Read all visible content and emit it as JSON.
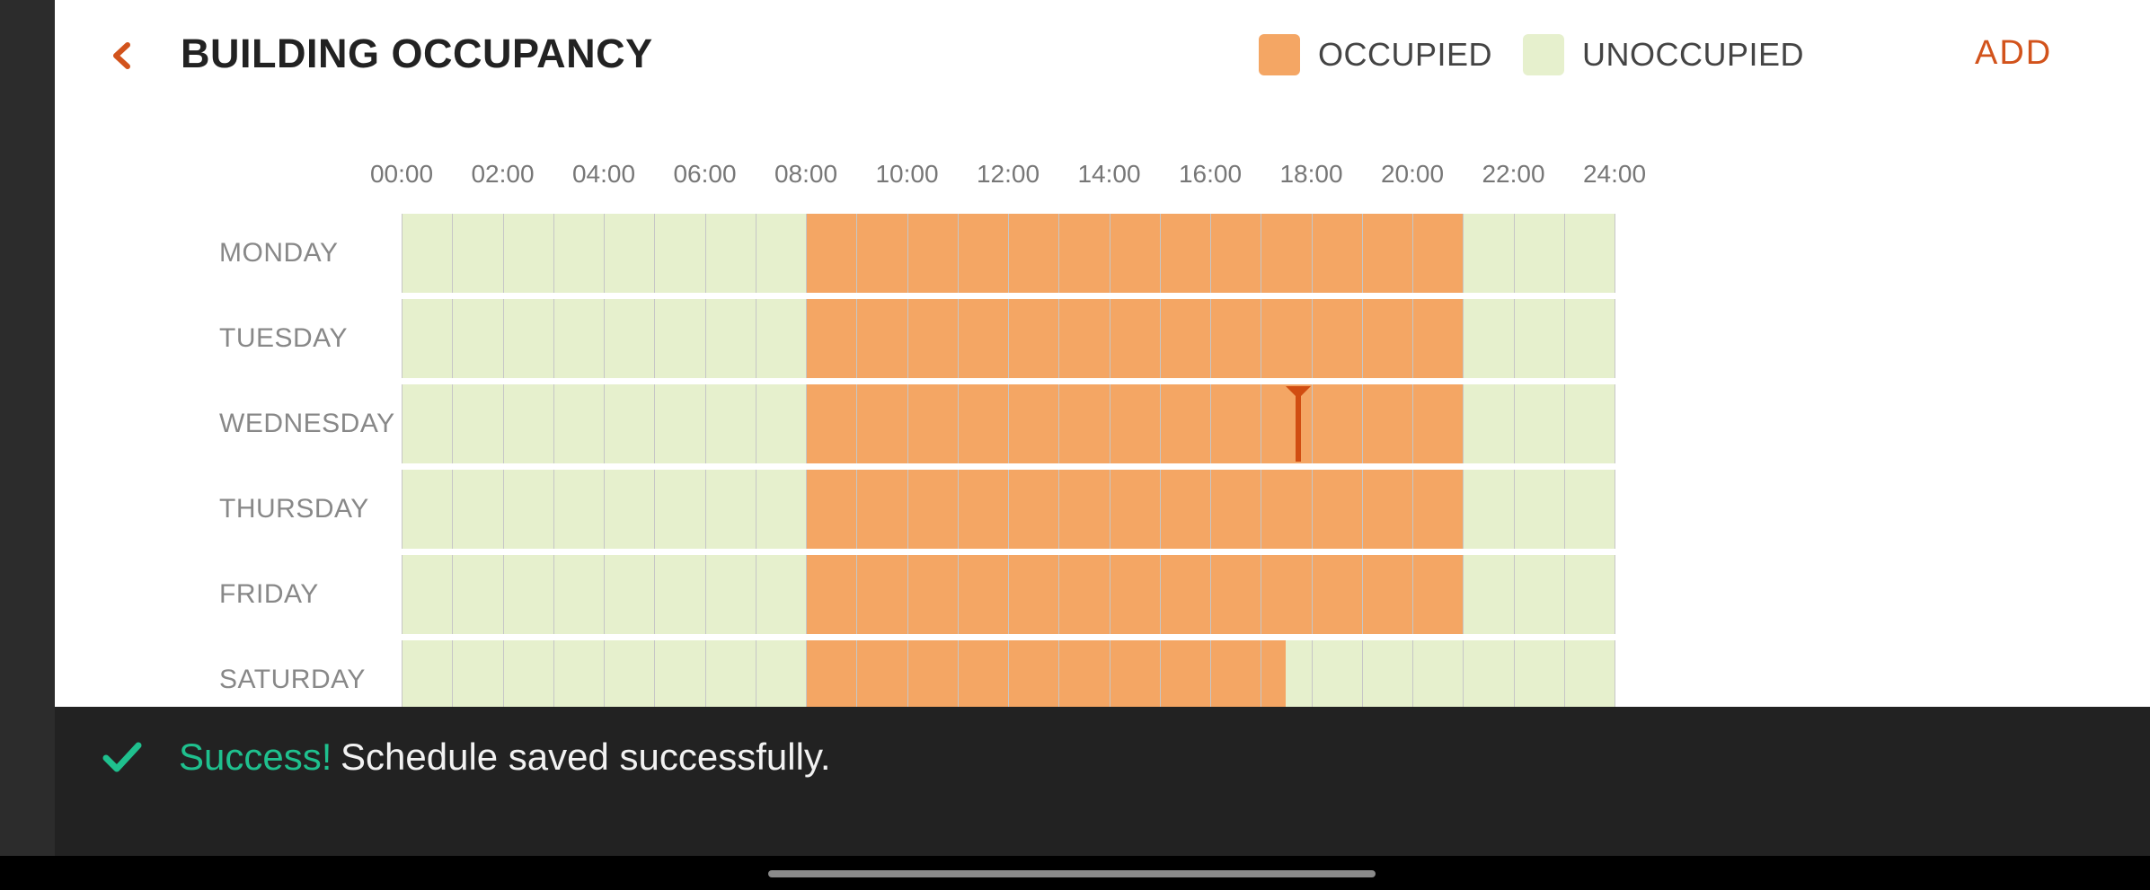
{
  "header": {
    "title": "BUILDING OCCUPANCY",
    "back_icon": "chevron-left-icon",
    "add_label": "ADD"
  },
  "legend": [
    {
      "label": "OCCUPIED",
      "color": "#f4a664"
    },
    {
      "label": "UNOCCUPIED",
      "color": "#e6f0cd"
    }
  ],
  "schedule": {
    "time_ticks": [
      "00:00",
      "02:00",
      "04:00",
      "06:00",
      "08:00",
      "10:00",
      "12:00",
      "14:00",
      "16:00",
      "18:00",
      "20:00",
      "22:00",
      "24:00"
    ],
    "days": [
      {
        "label": "MONDAY",
        "occupied_start_hour": 8,
        "occupied_end_hour": 21
      },
      {
        "label": "TUESDAY",
        "occupied_start_hour": 8,
        "occupied_end_hour": 21
      },
      {
        "label": "WEDNESDAY",
        "occupied_start_hour": 8,
        "occupied_end_hour": 21
      },
      {
        "label": "THURSDAY",
        "occupied_start_hour": 8,
        "occupied_end_hour": 21
      },
      {
        "label": "FRIDAY",
        "occupied_start_hour": 8,
        "occupied_end_hour": 21
      },
      {
        "label": "SATURDAY",
        "occupied_start_hour": 8,
        "occupied_end_hour": 17.5
      }
    ],
    "current_time_marker": {
      "day": "WEDNESDAY",
      "hour": 17.75,
      "color": "#d14d11"
    }
  },
  "snackbar": {
    "icon": "checkmark-icon",
    "title": "Success!",
    "message": "Schedule saved successfully."
  },
  "colors": {
    "accent": "#d2531c",
    "occupied": "#f4a664",
    "unoccupied": "#e6f0cd",
    "success": "#1fc08e"
  }
}
